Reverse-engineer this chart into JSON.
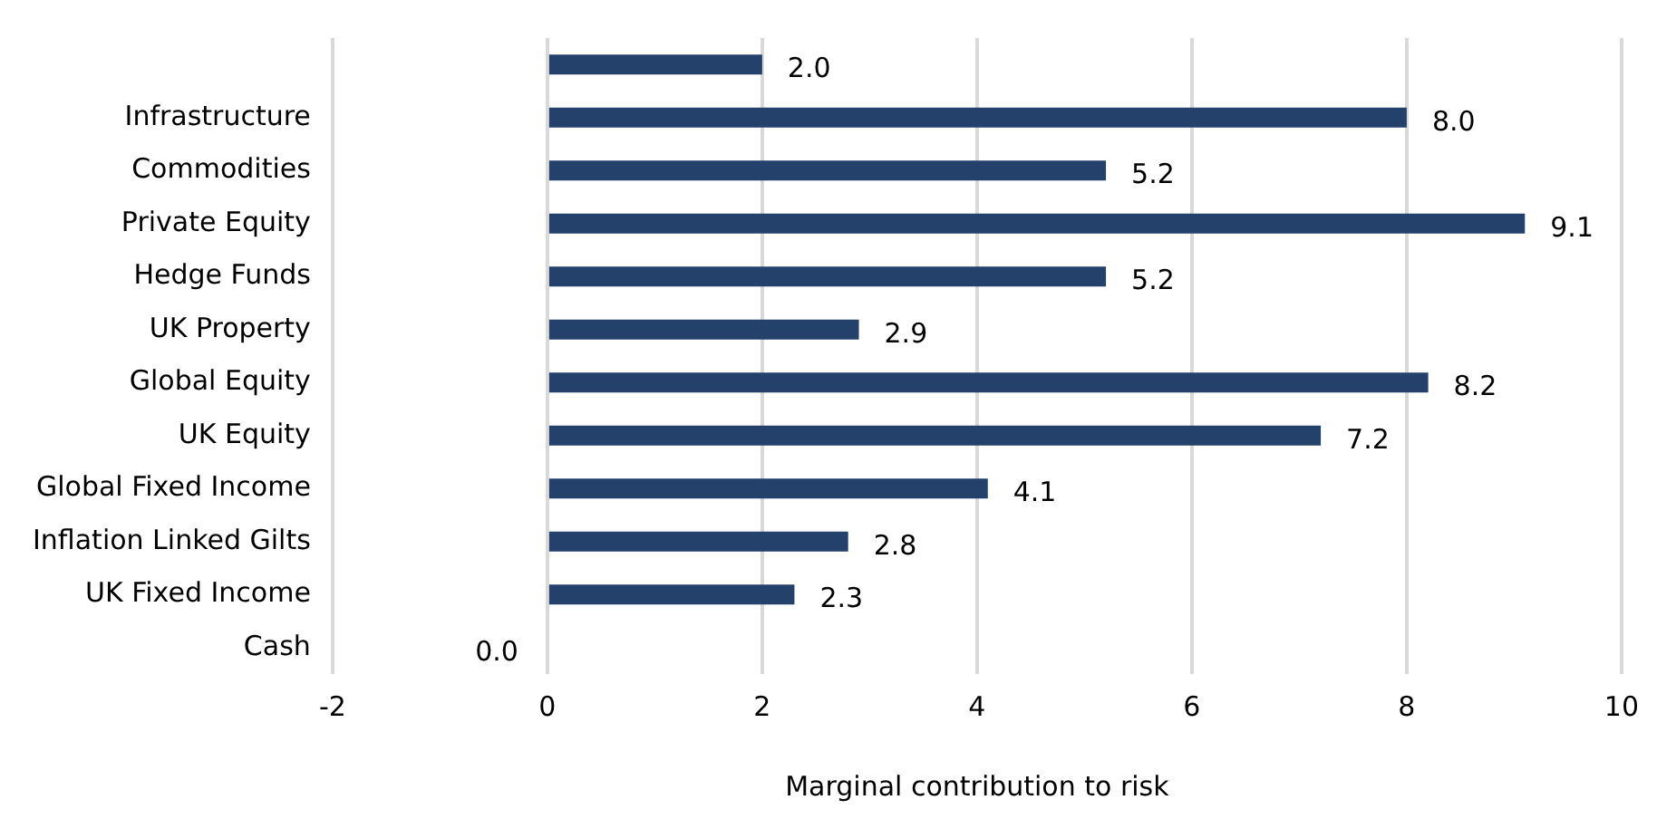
{
  "chart_data": {
    "type": "bar",
    "orientation": "horizontal",
    "xlabel": "Marginal contribution to risk",
    "categories": [
      null,
      "Infrastructure",
      "Commodities",
      "Private Equity",
      "Hedge Funds",
      "UK Property",
      "Global Equity",
      "UK Equity",
      "Global Fixed Income",
      "Inflation Linked Gilts",
      "UK Fixed Income",
      "Cash"
    ],
    "values": [
      2.0,
      8.0,
      5.2,
      9.1,
      5.2,
      2.9,
      8.2,
      7.2,
      4.1,
      2.8,
      2.3,
      0.0
    ],
    "color": "#24416b",
    "xlim": [
      -2,
      10
    ],
    "xticks": [
      -2,
      0,
      2,
      4,
      6,
      8,
      10
    ],
    "value_labels": [
      "2.0",
      "8.0",
      "5.2",
      "9.1",
      "5.2",
      "2.9",
      "8.2",
      "7.2",
      "4.1",
      "2.8",
      "2.3",
      "0.0"
    ],
    "grid": "x",
    "legend": false
  }
}
